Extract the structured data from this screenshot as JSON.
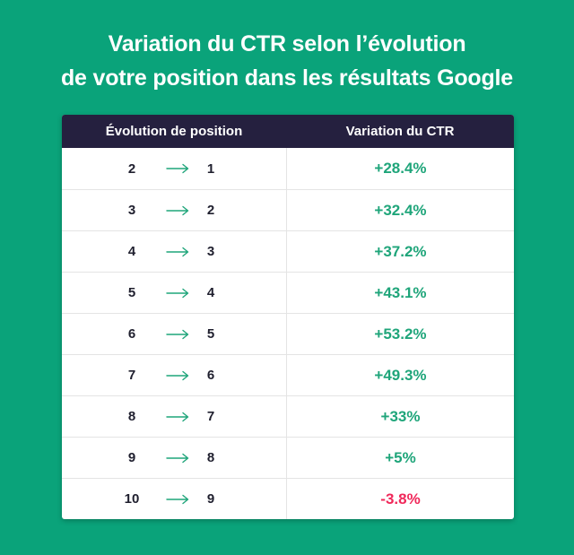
{
  "title": {
    "line1": "Variation du CTR selon l’évolution",
    "line2": "de votre position dans les résultats Google"
  },
  "colors": {
    "background": "#0aa37a",
    "header": "#25203f",
    "positive": "#1fa57a",
    "negative": "#f0285a"
  },
  "chart_data": {
    "type": "table",
    "title": "Variation du CTR selon l’évolution de votre position dans les résultats Google",
    "columns": [
      "Évolution de position",
      "Variation du CTR"
    ],
    "rows": [
      {
        "from": "2",
        "to": "1",
        "ctr": "+28.4%",
        "value": 28.4
      },
      {
        "from": "3",
        "to": "2",
        "ctr": "+32.4%",
        "value": 32.4
      },
      {
        "from": "4",
        "to": "3",
        "ctr": "+37.2%",
        "value": 37.2
      },
      {
        "from": "5",
        "to": "4",
        "ctr": "+43.1%",
        "value": 43.1
      },
      {
        "from": "6",
        "to": "5",
        "ctr": "+53.2%",
        "value": 53.2
      },
      {
        "from": "7",
        "to": "6",
        "ctr": "+49.3%",
        "value": 49.3
      },
      {
        "from": "8",
        "to": "7",
        "ctr": "+33%",
        "value": 33
      },
      {
        "from": "9",
        "to": "8",
        "ctr": "+5%",
        "value": 5
      },
      {
        "from": "10",
        "to": "9",
        "ctr": "-3.8%",
        "value": -3.8
      }
    ]
  }
}
